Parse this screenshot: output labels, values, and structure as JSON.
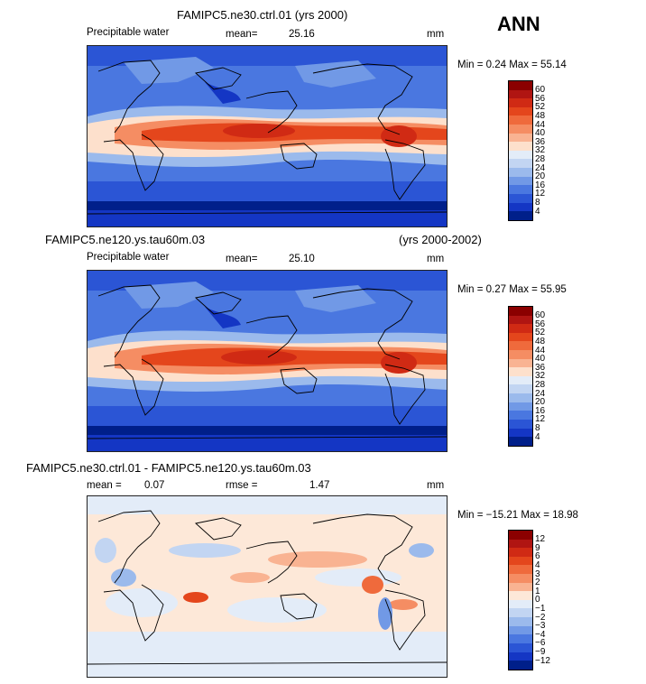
{
  "season": "ANN",
  "panels": [
    {
      "title": "FAMIPC5.ne30.ctrl.01 (yrs 2000)",
      "title_right": "",
      "variable": "Precipitable water",
      "stat1_label": "mean=",
      "stat1_value": "25.16",
      "stat2_label": "",
      "stat2_value": "",
      "units": "mm",
      "minmax": "Min =   0.24 Max =   55.14",
      "colorbar_labels": [
        "60",
        "56",
        "52",
        "48",
        "44",
        "40",
        "36",
        "32",
        "28",
        "24",
        "20",
        "16",
        "12",
        "8",
        "4"
      ]
    },
    {
      "title": "FAMIPC5.ne120.ys.tau60m.03",
      "title_right": "(yrs 2000-2002)",
      "variable": "Precipitable water",
      "stat1_label": "mean=",
      "stat1_value": "25.10",
      "stat2_label": "",
      "stat2_value": "",
      "units": "mm",
      "minmax": "Min =   0.27 Max =   55.95",
      "colorbar_labels": [
        "60",
        "56",
        "52",
        "48",
        "44",
        "40",
        "36",
        "32",
        "28",
        "24",
        "20",
        "16",
        "12",
        "8",
        "4"
      ]
    },
    {
      "title": "FAMIPC5.ne30.ctrl.01 - FAMIPC5.ne120.ys.tau60m.03",
      "title_right": "",
      "variable": "",
      "stat1_label": "mean =",
      "stat1_value": "0.07",
      "stat2_label": "rmse =",
      "stat2_value": "1.47",
      "units": "mm",
      "minmax": "Min = −15.21 Max =   18.98",
      "colorbar_labels": [
        "12",
        "9",
        "6",
        "4",
        "3",
        "2",
        "1",
        "0",
        "−1",
        "−2",
        "−3",
        "−4",
        "−6",
        "−9",
        "−12"
      ]
    }
  ],
  "colors": {
    "field_scale": [
      "#8b0000",
      "#b01512",
      "#d02a14",
      "#e4461c",
      "#ef6a3c",
      "#f58d63",
      "#f9b392",
      "#fde0cc",
      "#e3ecf8",
      "#c2d5f2",
      "#9bbaec",
      "#7199e6",
      "#4a77e0",
      "#2b55d5",
      "#1436c4",
      "#001f8a"
    ],
    "diff_scale": [
      "#8b0000",
      "#b01512",
      "#d02a14",
      "#e4461c",
      "#ef6a3c",
      "#f58d63",
      "#f9b392",
      "#fde8d8",
      "#e3ecf8",
      "#c2d5f2",
      "#9bbaec",
      "#7199e6",
      "#4a77e0",
      "#2b55d5",
      "#1436c4",
      "#001f8a"
    ]
  }
}
